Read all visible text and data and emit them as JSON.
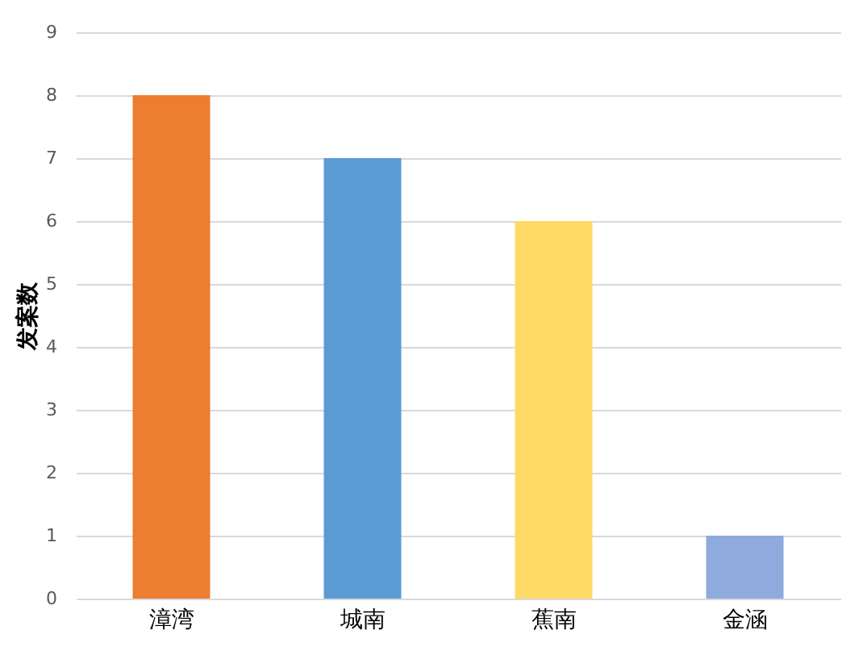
{
  "chart_data": {
    "type": "bar",
    "ylabel": "发案数",
    "categories": [
      "漳湾",
      "城南",
      "蕉南",
      "金涵"
    ],
    "values": [
      8,
      7,
      6,
      1
    ],
    "colors": [
      "#ed7d31",
      "#5b9bd5",
      "#ffd966",
      "#8faadc"
    ],
    "ylim": [
      0,
      9
    ],
    "yticks": [
      0,
      1,
      2,
      3,
      4,
      5,
      6,
      7,
      8,
      9
    ],
    "grid": "y",
    "legend": false
  }
}
